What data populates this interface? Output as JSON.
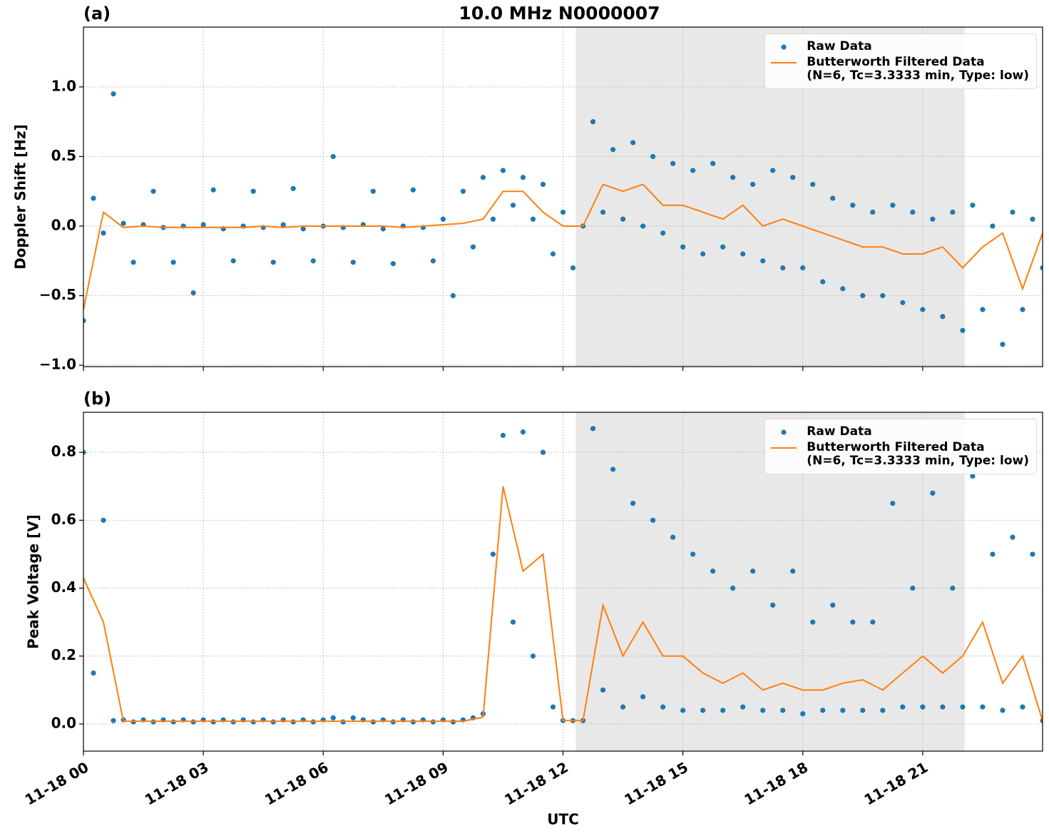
{
  "chart_data": [
    {
      "type": "scatter",
      "title": "10.0 MHz N0000007",
      "panel_label": "(a)",
      "ylabel": "Doppler Shift [Hz]",
      "xlim": [
        0,
        24
      ],
      "xticks": [
        0,
        3,
        6,
        9,
        12,
        15,
        18,
        21
      ],
      "ylim": [
        -1.01,
        1.43
      ],
      "yticks": [
        {
          "value": -1,
          "label": "−1.0"
        },
        {
          "value": -0.5,
          "label": "−0.5"
        },
        {
          "value": 0,
          "label": "0.0"
        },
        0.5,
        {
          "value": 1,
          "label": "1.0"
        }
      ],
      "grid": true,
      "legend": "upper right",
      "shaded_span": [
        12.32,
        22.05
      ],
      "shade_color": "#e8e8e8",
      "series": [
        {
          "name": "Raw Data",
          "type": "scatter",
          "color": "#1f77b4",
          "x": [
            0,
            0.25,
            0.5,
            0.75,
            1,
            1.25,
            1.5,
            1.75,
            2,
            2.25,
            2.5,
            2.75,
            3,
            3.25,
            3.5,
            3.75,
            4,
            4.25,
            4.5,
            4.75,
            5,
            5.25,
            5.5,
            5.75,
            6,
            6.25,
            6.5,
            6.75,
            7,
            7.25,
            7.5,
            7.75,
            8,
            8.25,
            8.5,
            8.75,
            9,
            9.25,
            9.5,
            9.75,
            10,
            10.25,
            10.5,
            10.75,
            11,
            11.25,
            11.5,
            11.75,
            12,
            12.25,
            12.5,
            12.75,
            13,
            13.25,
            13.5,
            13.75,
            14,
            14.25,
            14.5,
            14.75,
            15,
            15.25,
            15.5,
            15.75,
            16,
            16.25,
            16.5,
            16.75,
            17,
            17.25,
            17.5,
            17.75,
            18,
            18.25,
            18.5,
            18.75,
            19,
            19.25,
            19.5,
            19.75,
            20,
            20.25,
            20.5,
            20.75,
            21,
            21.25,
            21.5,
            21.75,
            22,
            22.25,
            22.5,
            22.75,
            23,
            23.25,
            23.5,
            23.75,
            24
          ],
          "values": [
            -0.68,
            0.2,
            -0.05,
            0.95,
            0.02,
            -0.26,
            0.01,
            0.25,
            -0.01,
            -0.26,
            0,
            -0.48,
            0.01,
            0.26,
            -0.02,
            -0.25,
            0,
            0.25,
            -0.01,
            -0.26,
            0.01,
            0.27,
            -0.02,
            -0.25,
            0,
            0.5,
            -0.01,
            -0.26,
            0.01,
            0.25,
            -0.02,
            -0.27,
            0,
            0.26,
            -0.01,
            -0.25,
            0.05,
            -0.5,
            0.25,
            -0.15,
            0.35,
            0.05,
            0.4,
            0.15,
            0.35,
            0.05,
            0.3,
            -0.2,
            0.1,
            -0.3,
            0,
            0.75,
            0.1,
            0.55,
            0.05,
            0.6,
            0,
            0.5,
            -0.05,
            0.45,
            -0.15,
            0.4,
            -0.2,
            0.45,
            -0.15,
            0.35,
            -0.2,
            0.3,
            -0.25,
            0.4,
            -0.3,
            0.35,
            -0.3,
            0.3,
            -0.4,
            0.2,
            -0.45,
            0.15,
            -0.5,
            0.1,
            -0.5,
            0.15,
            -0.55,
            0.1,
            -0.6,
            0.05,
            -0.65,
            0.1,
            -0.75,
            0.15,
            -0.6,
            0,
            -0.85,
            0.1,
            -0.6,
            0.05,
            -0.3
          ]
        },
        {
          "name": "Butterworth Filtered Data\n(N=6, Tc=3.3333 min, Type: low)",
          "type": "line",
          "color": "#ff7f0e",
          "x": [
            0,
            0.5,
            1,
            1.5,
            2,
            2.5,
            3,
            3.5,
            4,
            4.5,
            5,
            5.5,
            6,
            6.5,
            7,
            7.5,
            8,
            8.5,
            9,
            9.5,
            10,
            10.5,
            11,
            11.5,
            12,
            12.5,
            13,
            13.5,
            14,
            14.5,
            15,
            15.5,
            16,
            16.5,
            17,
            17.5,
            18,
            18.5,
            19,
            19.5,
            20,
            20.5,
            21,
            21.5,
            22,
            22.5,
            23,
            23.5,
            24
          ],
          "values": [
            -0.6,
            0.1,
            -0.01,
            0,
            -0.01,
            -0.01,
            -0.01,
            -0.01,
            -0.01,
            0,
            -0.01,
            0,
            0,
            0,
            0,
            0,
            -0.01,
            0,
            0.01,
            0.02,
            0.05,
            0.25,
            0.25,
            0.1,
            0,
            0,
            0.3,
            0.25,
            0.3,
            0.15,
            0.15,
            0.1,
            0.05,
            0.15,
            0,
            0.05,
            0,
            -0.05,
            -0.1,
            -0.15,
            -0.15,
            -0.2,
            -0.2,
            -0.15,
            -0.3,
            -0.15,
            -0.05,
            -0.45,
            -0.05
          ]
        }
      ]
    },
    {
      "type": "scatter",
      "panel_label": "(b)",
      "ylabel": "Peak Voltage [V]",
      "xlabel": "UTC",
      "xlim": [
        0,
        24
      ],
      "xticks": [
        {
          "value": 0,
          "label": "11-18 00"
        },
        {
          "value": 3,
          "label": "11-18 03"
        },
        {
          "value": 6,
          "label": "11-18 06"
        },
        {
          "value": 9,
          "label": "11-18 09"
        },
        {
          "value": 12,
          "label": "11-18 12"
        },
        {
          "value": 15,
          "label": "11-18 15"
        },
        {
          "value": 18,
          "label": "11-18 18"
        },
        {
          "value": 21,
          "label": "11-18 21"
        }
      ],
      "ylim": [
        -0.08,
        0.918
      ],
      "yticks": [
        {
          "value": 0,
          "label": "0.0"
        },
        0.2,
        0.4,
        0.6,
        0.8
      ],
      "grid": true,
      "legend": "upper right",
      "shaded_span": [
        12.32,
        22.05
      ],
      "shade_color": "#e8e8e8",
      "series": [
        {
          "name": "Raw Data",
          "type": "scatter",
          "color": "#1f77b4",
          "x": [
            0,
            0.25,
            0.5,
            0.75,
            1,
            1.25,
            1.5,
            1.75,
            2,
            2.25,
            2.5,
            2.75,
            3,
            3.25,
            3.5,
            3.75,
            4,
            4.25,
            4.5,
            4.75,
            5,
            5.25,
            5.5,
            5.75,
            6,
            6.25,
            6.5,
            6.75,
            7,
            7.25,
            7.5,
            7.75,
            8,
            8.25,
            8.5,
            8.75,
            9,
            9.25,
            9.5,
            9.75,
            10,
            10.25,
            10.5,
            10.75,
            11,
            11.25,
            11.5,
            11.75,
            12,
            12.25,
            12.5,
            12.75,
            13,
            13.25,
            13.5,
            13.75,
            14,
            14.25,
            14.5,
            14.75,
            15,
            15.25,
            15.5,
            15.75,
            16,
            16.25,
            16.5,
            16.75,
            17,
            17.25,
            17.5,
            17.75,
            18,
            18.25,
            18.5,
            18.75,
            19,
            19.25,
            19.5,
            19.75,
            20,
            20.25,
            20.5,
            20.75,
            21,
            21.25,
            21.5,
            21.75,
            22,
            22.25,
            22.5,
            22.75,
            23,
            23.25,
            23.5,
            23.75,
            24
          ],
          "values": [
            0.8,
            0.15,
            0.6,
            0.01,
            0.012,
            0.006,
            0.012,
            0.006,
            0.012,
            0.006,
            0.012,
            0.006,
            0.012,
            0.006,
            0.012,
            0.006,
            0.012,
            0.006,
            0.012,
            0.006,
            0.012,
            0.006,
            0.012,
            0.006,
            0.012,
            0.018,
            0.006,
            0.018,
            0.012,
            0.006,
            0.012,
            0.006,
            0.012,
            0.006,
            0.012,
            0.006,
            0.012,
            0.006,
            0.012,
            0.018,
            0.03,
            0.5,
            0.85,
            0.3,
            0.86,
            0.2,
            0.8,
            0.05,
            0.01,
            0.01,
            0.01,
            0.87,
            0.1,
            0.75,
            0.05,
            0.65,
            0.08,
            0.6,
            0.05,
            0.55,
            0.04,
            0.5,
            0.04,
            0.45,
            0.04,
            0.4,
            0.05,
            0.45,
            0.04,
            0.35,
            0.04,
            0.45,
            0.03,
            0.3,
            0.04,
            0.35,
            0.04,
            0.3,
            0.04,
            0.3,
            0.04,
            0.65,
            0.05,
            0.4,
            0.05,
            0.68,
            0.05,
            0.4,
            0.05,
            0.73,
            0.05,
            0.5,
            0.04,
            0.55,
            0.05,
            0.5,
            0.01
          ]
        },
        {
          "name": "Butterworth Filtered Data\n(N=6, Tc=3.3333 min, Type: low)",
          "type": "line",
          "color": "#ff7f0e",
          "x": [
            0,
            0.5,
            1,
            1.5,
            2,
            2.5,
            3,
            3.5,
            4,
            4.5,
            5,
            5.5,
            6,
            6.5,
            7,
            7.5,
            8,
            8.5,
            9,
            9.5,
            10,
            10.5,
            11,
            11.5,
            12,
            12.5,
            13,
            13.5,
            14,
            14.5,
            15,
            15.5,
            16,
            16.5,
            17,
            17.5,
            18,
            18.5,
            19,
            19.5,
            20,
            20.5,
            21,
            21.5,
            22,
            22.5,
            23,
            23.5,
            24
          ],
          "values": [
            0.43,
            0.3,
            0.008,
            0.008,
            0.008,
            0.008,
            0.008,
            0.008,
            0.008,
            0.008,
            0.008,
            0.008,
            0.008,
            0.008,
            0.008,
            0.008,
            0.008,
            0.008,
            0.008,
            0.008,
            0.02,
            0.7,
            0.45,
            0.5,
            0.01,
            0.01,
            0.35,
            0.2,
            0.3,
            0.2,
            0.2,
            0.15,
            0.12,
            0.15,
            0.1,
            0.12,
            0.1,
            0.1,
            0.12,
            0.13,
            0.1,
            0.15,
            0.2,
            0.15,
            0.2,
            0.3,
            0.12,
            0.2,
            0.01
          ]
        }
      ]
    }
  ]
}
